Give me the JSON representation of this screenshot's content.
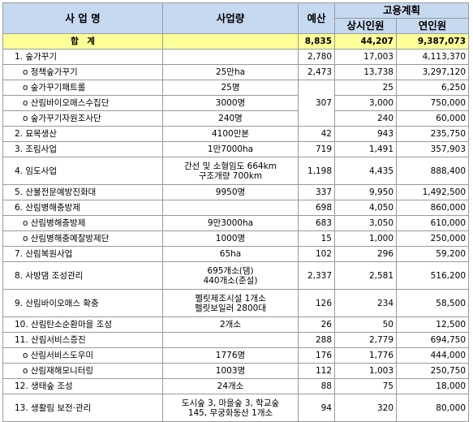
{
  "header": {
    "name": "사 업 명",
    "amount": "사업량",
    "budget": "예산",
    "employment": "고용계획",
    "regular": "상시인원",
    "annual": "연인원"
  },
  "total": {
    "name": "합　계",
    "budget": "8,835",
    "regular": "44,207",
    "annual": "9,387,073"
  },
  "rows": [
    {
      "name": "1. 숲가꾸기",
      "budget": "2,780",
      "regular": "17,003",
      "annual": "4,113,370"
    },
    {
      "name": "o 정책숲가꾸기",
      "amount": "25만ha",
      "budget": "2,473",
      "regular": "13,738",
      "annual": "3,297,120"
    },
    {
      "name": "o 숲가꾸기패트롤",
      "amount": "25명",
      "budget": "307",
      "regular": "25",
      "annual": "6,250"
    },
    {
      "name": "o 산림바이오매스수집단",
      "amount": "3000명",
      "regular": "3,000",
      "annual": "750,000"
    },
    {
      "name": "o 숲가꾸기자원조사단",
      "amount": "240명",
      "regular": "240",
      "annual": "60,000"
    },
    {
      "name": "2. 묘목생산",
      "amount": "4100만본",
      "budget": "42",
      "regular": "943",
      "annual": "235,750"
    },
    {
      "name": "3. 조림사업",
      "amount": "1만7000ha",
      "budget": "719",
      "regular": "1,491",
      "annual": "357,903"
    },
    {
      "name": "4. 임도사업",
      "amount": "간선 및 소형임도 664km\n구조개량 700km",
      "budget": "1,198",
      "regular": "4,435",
      "annual": "888,400"
    },
    {
      "name": "5. 산불전문예방진화대",
      "amount": "9950명",
      "budget": "337",
      "regular": "9,950",
      "annual": "1,492,500"
    },
    {
      "name": "6. 산림병해충방제",
      "budget": "698",
      "regular": "4,050",
      "annual": "860,000"
    },
    {
      "name": "o 산림병해충방제",
      "amount": "9만3000ha",
      "budget": "683",
      "regular": "3,050",
      "annual": "610,000"
    },
    {
      "name": "o 산림병해충예찰방제단",
      "amount": "1000명",
      "budget": "15",
      "regular": "1,000",
      "annual": "250,000"
    },
    {
      "name": "7. 산림복원사업",
      "amount": "65ha",
      "budget": "102",
      "regular": "296",
      "annual": "59,200"
    },
    {
      "name": "8. 사방댐 조성관리",
      "amount": "695개소(댐)\n440개소(준설)",
      "budget": "2,337",
      "regular": "2,581",
      "annual": "516,200"
    },
    {
      "name": "9. 산림바이오매스 확충",
      "amount": "펠릿제조시설 1개소\n펠릿보일러 2800대",
      "budget": "126",
      "regular": "234",
      "annual": "58,500"
    },
    {
      "name": "10. 산림탄소순환마을 조성",
      "amount": "2개소",
      "budget": "26",
      "regular": "50",
      "annual": "12,500"
    },
    {
      "name": "11. 산림서비스증진",
      "budget": "288",
      "regular": "2,779",
      "annual": "694,750"
    },
    {
      "name": "o 산림서비스도우미",
      "amount": "1776명",
      "budget": "176",
      "regular": "1,776",
      "annual": "444,000"
    },
    {
      "name": "o 산림재해모니터링",
      "amount": "1003명",
      "budget": "112",
      "regular": "1,003",
      "annual": "250,750"
    },
    {
      "name": "12. 생태숲 조성",
      "amount": "24개소",
      "budget": "88",
      "regular": "75",
      "annual": "18,000"
    },
    {
      "name": "13. 생활림 보전·관리",
      "amount": "도시숲 3, 마을숲 3, 학교숲\n145, 무궁화동산 1개소",
      "budget": "94",
      "regular": "320",
      "annual": "80,000"
    }
  ]
}
